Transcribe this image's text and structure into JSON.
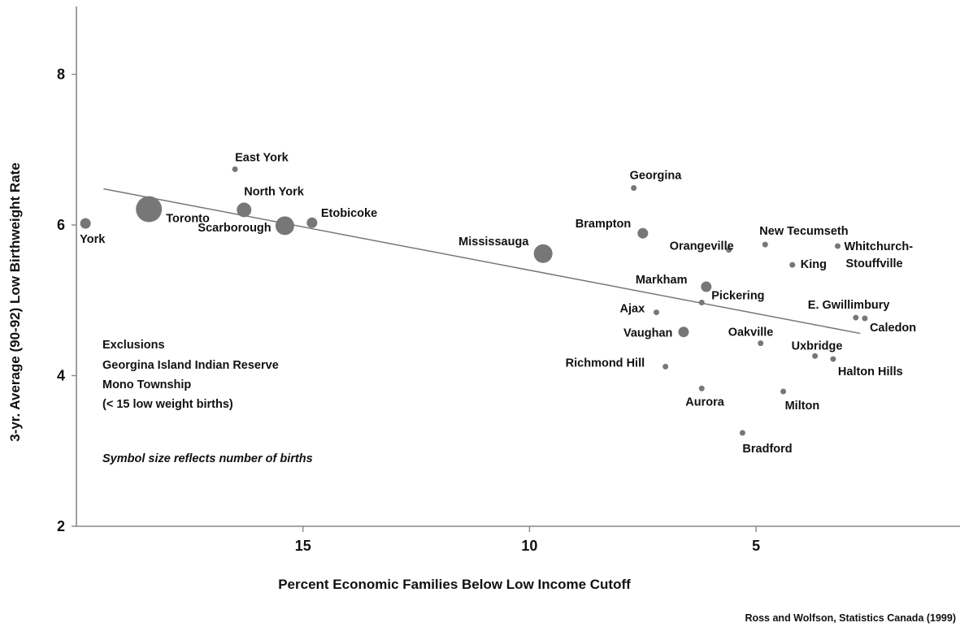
{
  "chart_data": {
    "type": "scatter",
    "xlabel": "Percent Economic Families Below Low Income Cutoff",
    "ylabel": "3-yr. Average (90-92) Low Birthweight Rate",
    "x_reversed": true,
    "xlim": [
      20,
      0.5
    ],
    "ylim": [
      2,
      8.9
    ],
    "x_ticks": [
      15,
      10,
      5
    ],
    "y_ticks": [
      2,
      4,
      6,
      8
    ],
    "trend_line": {
      "x": [
        19.4,
        2.7
      ],
      "y": [
        6.48,
        4.56
      ]
    },
    "points": [
      {
        "label": "York",
        "x": 19.8,
        "y": 6.02,
        "size": "small"
      },
      {
        "label": "Toronto",
        "x": 18.4,
        "y": 6.21,
        "size": "xlarge"
      },
      {
        "label": "East York",
        "x": 16.5,
        "y": 6.74,
        "size": "tiny"
      },
      {
        "label": "North York",
        "x": 16.3,
        "y": 6.2,
        "size": "medium"
      },
      {
        "label": "Scarborough",
        "x": 15.4,
        "y": 5.99,
        "size": "large"
      },
      {
        "label": "Etobicoke",
        "x": 14.8,
        "y": 6.03,
        "size": "small"
      },
      {
        "label": "Mississauga",
        "x": 9.7,
        "y": 5.62,
        "size": "large"
      },
      {
        "label": "Georgina",
        "x": 7.7,
        "y": 6.49,
        "size": "tiny"
      },
      {
        "label": "Brampton",
        "x": 7.5,
        "y": 5.89,
        "size": "small"
      },
      {
        "label": "Orangeville",
        "x": 5.6,
        "y": 5.67,
        "size": "tiny"
      },
      {
        "label": "New Tecumseth",
        "x": 4.8,
        "y": 5.74,
        "size": "tiny"
      },
      {
        "label": "Whitchurch-Stouffville",
        "x": 3.2,
        "y": 5.72,
        "size": "tiny"
      },
      {
        "label": "King",
        "x": 4.2,
        "y": 5.47,
        "size": "tiny"
      },
      {
        "label": "Markham",
        "x": 6.1,
        "y": 5.18,
        "size": "small"
      },
      {
        "label": "Pickering",
        "x": 6.2,
        "y": 4.97,
        "size": "tiny"
      },
      {
        "label": "Ajax",
        "x": 7.2,
        "y": 4.84,
        "size": "tiny"
      },
      {
        "label": "E. Gwillimbury",
        "x": 2.8,
        "y": 4.77,
        "size": "tiny"
      },
      {
        "label": "Caledon",
        "x": 2.6,
        "y": 4.76,
        "size": "tiny"
      },
      {
        "label": "Vaughan",
        "x": 6.6,
        "y": 4.58,
        "size": "small"
      },
      {
        "label": "Oakville",
        "x": 4.9,
        "y": 4.43,
        "size": "tiny"
      },
      {
        "label": "Uxbridge",
        "x": 3.7,
        "y": 4.26,
        "size": "tiny"
      },
      {
        "label": "Halton Hills",
        "x": 3.3,
        "y": 4.22,
        "size": "tiny"
      },
      {
        "label": "Richmond Hill",
        "x": 7.0,
        "y": 4.12,
        "size": "tiny"
      },
      {
        "label": "Aurora",
        "x": 6.2,
        "y": 3.83,
        "size": "tiny"
      },
      {
        "label": "Milton",
        "x": 4.4,
        "y": 3.79,
        "size": "tiny"
      },
      {
        "label": "Bradford",
        "x": 5.3,
        "y": 3.24,
        "size": "tiny"
      }
    ]
  },
  "notes": {
    "exclusions_title": "Exclusions",
    "exclusion_1": "Georgina Island Indian Reserve",
    "exclusion_2": "Mono Township",
    "exclusion_3": "(< 15 low weight births)",
    "symbol_note": "Symbol size reflects number of births"
  },
  "source": "Ross and Wolfson, Statistics Canada (1999)",
  "colors": {
    "marker": "#777777",
    "trend": "#777777",
    "axis": "#888888"
  }
}
